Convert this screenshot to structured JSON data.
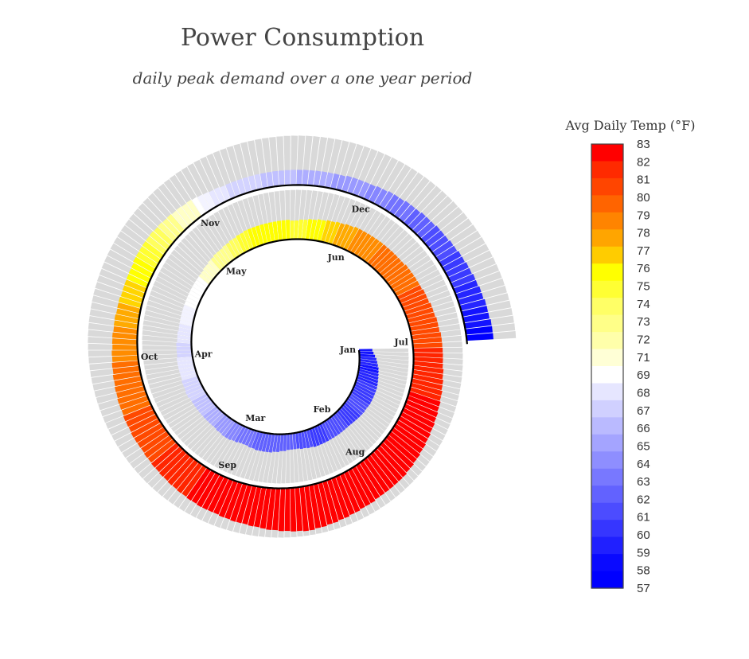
{
  "title": "Power Consumption",
  "subtitle": "daily peak demand over a one year period",
  "colors": {
    "track": "#d9d9d9",
    "spine": "#000000",
    "label": "#222222"
  },
  "chart_data": {
    "type": "bar",
    "polar": true,
    "spiral": true,
    "description_units": "bars per day; radial length = relative daily peak demand (0-1); color = avg daily temp (F)",
    "months": [
      {
        "label": "Jan",
        "temp": [
          58,
          58,
          58,
          59,
          59,
          59,
          58,
          58,
          59,
          59,
          59,
          59,
          60,
          60,
          60,
          60,
          60,
          60,
          61,
          61,
          61,
          61,
          60,
          60,
          60,
          60,
          60,
          61,
          61,
          61,
          61
        ],
        "demand": [
          0.3,
          0.32,
          0.35,
          0.38,
          0.4,
          0.42,
          0.44,
          0.45,
          0.46,
          0.47,
          0.48,
          0.49,
          0.5,
          0.5,
          0.5,
          0.5,
          0.5,
          0.5,
          0.49,
          0.48,
          0.48,
          0.47,
          0.46,
          0.45,
          0.44,
          0.43,
          0.42,
          0.42,
          0.42,
          0.42,
          0.42
        ]
      },
      {
        "label": "Feb",
        "temp": [
          61,
          61,
          61,
          60,
          60,
          60,
          60,
          60,
          61,
          61,
          61,
          61,
          61,
          62,
          62,
          62,
          62,
          62,
          62,
          62,
          62,
          62,
          62,
          62,
          62,
          62,
          63,
          63
        ],
        "demand": [
          0.42,
          0.42,
          0.42,
          0.42,
          0.42,
          0.42,
          0.42,
          0.42,
          0.4,
          0.4,
          0.38,
          0.38,
          0.36,
          0.36,
          0.36,
          0.36,
          0.38,
          0.38,
          0.4,
          0.4,
          0.42,
          0.42,
          0.42,
          0.42,
          0.42,
          0.4,
          0.4,
          0.38
        ]
      },
      {
        "label": "Mar",
        "temp": [
          63,
          63,
          63,
          64,
          64,
          64,
          65,
          65,
          65,
          65,
          66,
          66,
          66,
          66,
          67,
          67,
          67,
          67,
          67,
          68,
          68,
          68,
          68,
          68,
          68,
          69,
          69,
          69,
          69,
          69,
          69
        ],
        "demand": [
          0.38,
          0.38,
          0.4,
          0.4,
          0.42,
          0.42,
          0.42,
          0.4,
          0.4,
          0.38,
          0.38,
          0.38,
          0.38,
          0.38,
          0.38,
          0.38,
          0.38,
          0.38,
          0.38,
          0.38,
          0.4,
          0.4,
          0.38,
          0.38,
          0.38,
          0.36,
          0.36,
          0.36,
          0.36,
          0.36,
          0.36
        ]
      },
      {
        "label": "Apr",
        "temp": [
          68,
          68,
          68,
          68,
          69,
          69,
          69,
          69,
          69,
          70,
          70,
          70,
          70,
          70,
          71,
          71,
          71,
          71,
          71,
          71,
          71,
          71,
          72,
          72,
          72,
          72,
          72,
          73,
          73,
          73
        ],
        "demand": [
          0.34,
          0.34,
          0.34,
          0.34,
          0.32,
          0.32,
          0.32,
          0.3,
          0.3,
          0.3,
          0.3,
          0.3,
          0.3,
          0.3,
          0.3,
          0.3,
          0.3,
          0.3,
          0.3,
          0.3,
          0.3,
          0.3,
          0.3,
          0.3,
          0.32,
          0.32,
          0.34,
          0.34,
          0.36,
          0.36
        ]
      },
      {
        "label": "May",
        "temp": [
          73,
          73,
          74,
          74,
          74,
          75,
          75,
          75,
          76,
          76,
          76,
          76,
          76,
          76,
          76,
          76,
          76,
          76,
          75,
          75,
          75,
          75,
          76,
          76,
          76,
          76,
          77,
          77,
          77,
          78,
          78
        ],
        "demand": [
          0.36,
          0.38,
          0.38,
          0.4,
          0.4,
          0.42,
          0.42,
          0.44,
          0.44,
          0.44,
          0.44,
          0.44,
          0.44,
          0.44,
          0.44,
          0.44,
          0.44,
          0.44,
          0.42,
          0.42,
          0.44,
          0.44,
          0.46,
          0.46,
          0.48,
          0.48,
          0.5,
          0.5,
          0.52,
          0.52,
          0.54
        ]
      },
      {
        "label": "Jun",
        "temp": [
          78,
          78,
          79,
          79,
          79,
          79,
          79,
          79,
          80,
          80,
          80,
          80,
          80,
          80,
          80,
          80,
          80,
          80,
          80,
          81,
          81,
          81,
          81,
          81,
          81,
          81,
          81,
          81,
          81,
          81
        ],
        "demand": [
          0.54,
          0.56,
          0.56,
          0.56,
          0.56,
          0.56,
          0.56,
          0.56,
          0.56,
          0.56,
          0.56,
          0.56,
          0.56,
          0.56,
          0.58,
          0.58,
          0.58,
          0.58,
          0.58,
          0.58,
          0.6,
          0.6,
          0.6,
          0.62,
          0.62,
          0.62,
          0.64,
          0.64,
          0.64,
          0.66
        ]
      },
      {
        "label": "Jul",
        "temp": [
          81,
          81,
          82,
          82,
          82,
          82,
          82,
          82,
          82,
          82,
          82,
          82,
          83,
          83,
          83,
          83,
          83,
          83,
          83,
          83,
          83,
          83,
          83,
          83,
          83,
          83,
          83,
          83,
          83,
          83,
          83
        ],
        "demand": [
          0.66,
          0.66,
          0.66,
          0.66,
          0.66,
          0.66,
          0.68,
          0.68,
          0.7,
          0.7,
          0.72,
          0.72,
          0.74,
          0.74,
          0.76,
          0.76,
          0.78,
          0.78,
          0.8,
          0.8,
          0.82,
          0.82,
          0.84,
          0.84,
          0.86,
          0.86,
          0.88,
          0.88,
          0.88,
          0.88,
          0.88
        ]
      },
      {
        "label": "Aug",
        "temp": [
          83,
          83,
          83,
          83,
          83,
          83,
          83,
          83,
          83,
          83,
          83,
          83,
          83,
          83,
          83,
          83,
          83,
          83,
          83,
          83,
          83,
          83,
          83,
          83,
          83,
          83,
          83,
          83,
          83,
          83,
          83
        ],
        "demand": [
          0.88,
          0.88,
          0.9,
          0.9,
          0.9,
          0.92,
          0.92,
          0.94,
          0.94,
          0.96,
          0.96,
          0.98,
          0.98,
          1.0,
          1.0,
          0.98,
          0.98,
          0.96,
          0.96,
          0.94,
          0.94,
          0.92,
          0.9,
          0.9,
          0.88,
          0.88,
          0.88,
          0.86,
          0.86,
          0.84,
          0.84
        ]
      },
      {
        "label": "Sep",
        "temp": [
          83,
          83,
          83,
          83,
          82,
          82,
          82,
          82,
          82,
          82,
          82,
          82,
          81,
          81,
          81,
          81,
          81,
          81,
          81,
          81,
          81,
          80,
          80,
          80,
          80,
          80,
          80,
          80,
          80,
          80
        ],
        "demand": [
          0.84,
          0.84,
          0.82,
          0.82,
          0.8,
          0.8,
          0.78,
          0.78,
          0.76,
          0.76,
          0.74,
          0.74,
          0.72,
          0.72,
          0.7,
          0.7,
          0.7,
          0.7,
          0.68,
          0.68,
          0.68,
          0.66,
          0.66,
          0.66,
          0.64,
          0.64,
          0.62,
          0.62,
          0.6,
          0.6
        ]
      },
      {
        "label": "Oct",
        "temp": [
          79,
          79,
          79,
          79,
          79,
          79,
          78,
          78,
          78,
          78,
          77,
          77,
          77,
          77,
          76,
          76,
          76,
          76,
          75,
          75,
          75,
          74,
          74,
          74,
          73,
          73,
          73,
          72,
          72,
          72,
          72
        ],
        "demand": [
          0.58,
          0.58,
          0.56,
          0.56,
          0.56,
          0.54,
          0.54,
          0.54,
          0.52,
          0.52,
          0.52,
          0.5,
          0.5,
          0.5,
          0.5,
          0.5,
          0.5,
          0.52,
          0.52,
          0.52,
          0.52,
          0.52,
          0.52,
          0.5,
          0.5,
          0.48,
          0.48,
          0.46,
          0.46,
          0.44,
          0.44
        ]
      },
      {
        "label": "Nov",
        "temp": [
          71,
          70,
          70,
          69,
          69,
          69,
          68,
          68,
          68,
          68,
          68,
          68,
          67,
          67,
          67,
          67,
          67,
          67,
          66,
          66,
          66,
          66,
          66,
          66,
          65,
          65,
          65,
          65,
          65,
          65
        ],
        "demand": [
          0.42,
          0.4,
          0.38,
          0.36,
          0.36,
          0.34,
          0.34,
          0.34,
          0.34,
          0.34,
          0.34,
          0.34,
          0.34,
          0.34,
          0.34,
          0.34,
          0.34,
          0.34,
          0.34,
          0.34,
          0.34,
          0.34,
          0.34,
          0.34,
          0.34,
          0.34,
          0.36,
          0.36,
          0.36,
          0.36
        ]
      },
      {
        "label": "Dec",
        "temp": [
          64,
          64,
          64,
          64,
          63,
          63,
          63,
          63,
          62,
          62,
          62,
          62,
          61,
          61,
          61,
          61,
          61,
          60,
          60,
          60,
          60,
          60,
          59,
          59,
          59,
          59,
          58,
          58,
          58,
          57,
          57
        ],
        "demand": [
          0.36,
          0.38,
          0.38,
          0.4,
          0.4,
          0.4,
          0.42,
          0.42,
          0.42,
          0.44,
          0.44,
          0.44,
          0.46,
          0.46,
          0.46,
          0.48,
          0.48,
          0.5,
          0.5,
          0.52,
          0.52,
          0.54,
          0.54,
          0.56,
          0.56,
          0.58,
          0.58,
          0.58,
          0.6,
          0.6,
          0.6
        ]
      }
    ],
    "colorbar": {
      "title": "Avg Daily Temp (°F)",
      "ticks": [
        "83",
        "82",
        "81",
        "80",
        "79",
        "78",
        "77",
        "76",
        "75",
        "74",
        "73",
        "72",
        "71",
        "69",
        "68",
        "67",
        "66",
        "65",
        "64",
        "63",
        "62",
        "61",
        "60",
        "59",
        "58",
        "57"
      ],
      "colors": [
        "#ff0000",
        "#ff2a00",
        "#ff4500",
        "#ff6400",
        "#ff8400",
        "#ffa500",
        "#ffcc00",
        "#ffff00",
        "#ffff33",
        "#ffff66",
        "#ffff88",
        "#ffffaa",
        "#ffffd6",
        "#ffffff",
        "#e6e6ff",
        "#d0d0ff",
        "#babaff",
        "#a4a4ff",
        "#8e8eff",
        "#7878ff",
        "#6262ff",
        "#4c4cff",
        "#3636ff",
        "#2020ff",
        "#0a0aff",
        "#0000ff"
      ]
    }
  }
}
